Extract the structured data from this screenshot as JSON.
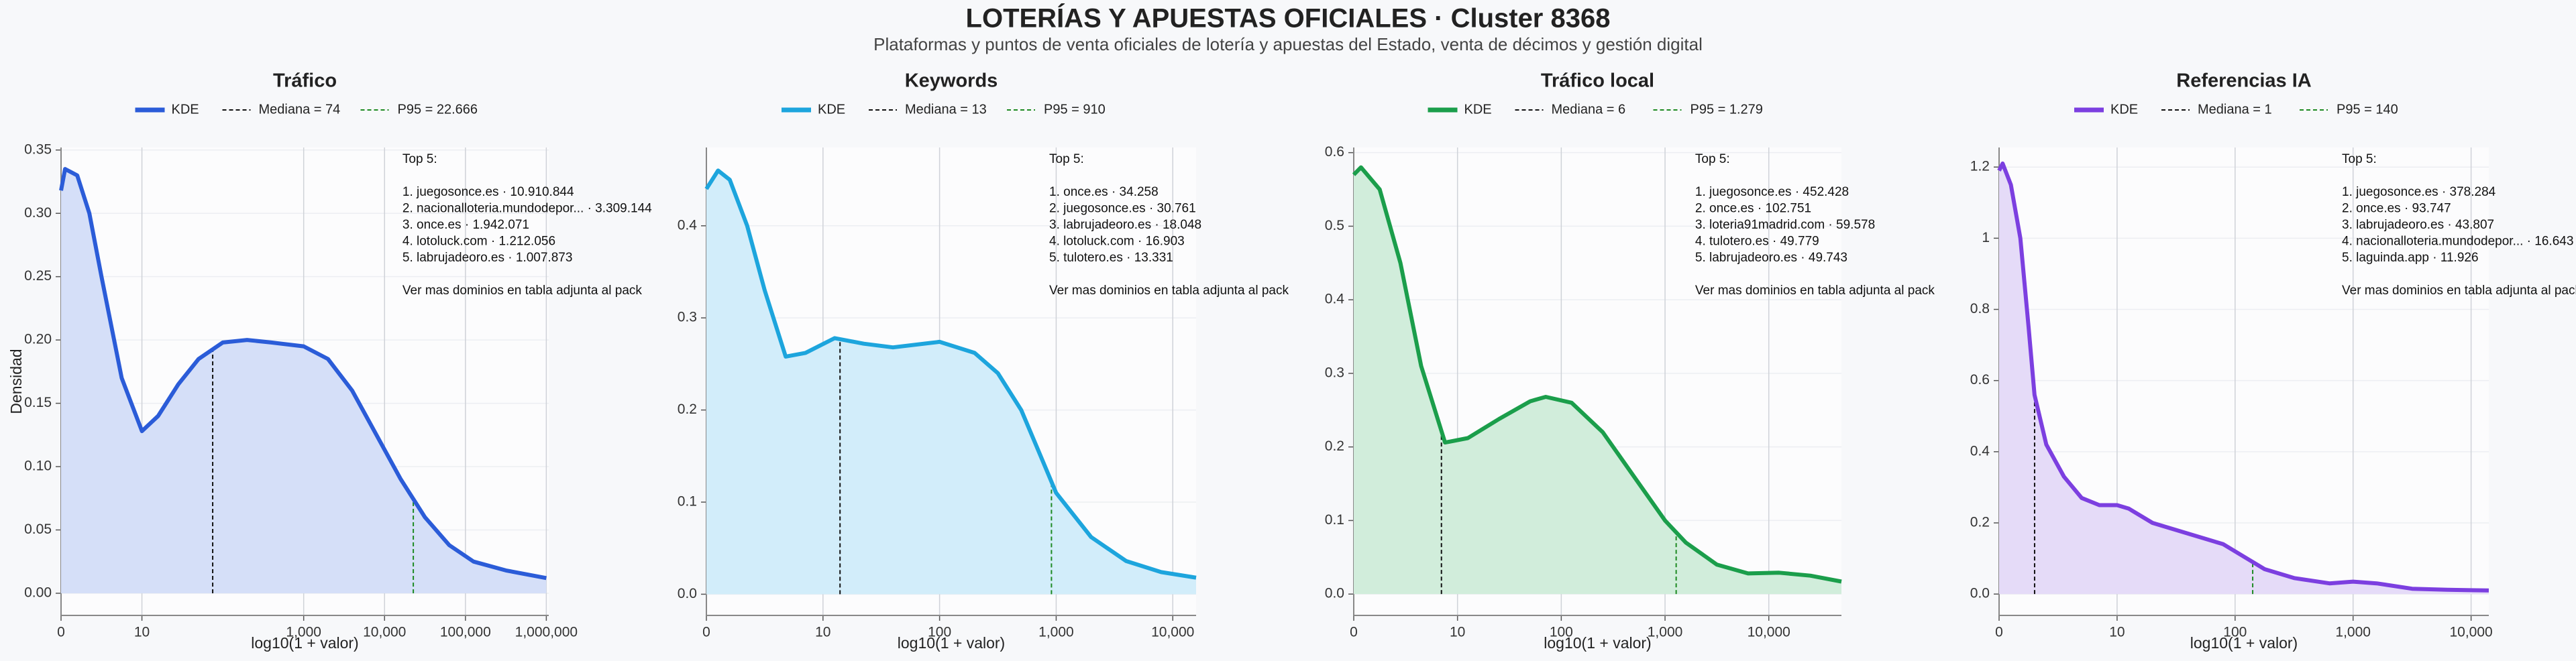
{
  "title": "LOTERÍAS Y APUESTAS OFICIALES · Cluster 8368",
  "subtitle": "Plataformas y puntos de venta oficiales de lotería y apuestas del Estado, venta de décimos y gestión digital",
  "chart_data": [
    {
      "type": "line",
      "title": "Tráfico",
      "x_label": "log10(1 + valor)",
      "y_label": "Densidad",
      "x": [
        0,
        0.05,
        0.2,
        0.35,
        0.5,
        0.75,
        1.0,
        1.2,
        1.45,
        1.7,
        2.0,
        2.3,
        2.6,
        3.0,
        3.3,
        3.6,
        3.9,
        4.2,
        4.5,
        4.8,
        5.1,
        5.5,
        6.0
      ],
      "series": [
        {
          "name": "KDE",
          "color": "#2b5cd8",
          "fill": "#d5dff8",
          "values": [
            0.318,
            0.335,
            0.33,
            0.3,
            0.25,
            0.17,
            0.128,
            0.14,
            0.165,
            0.185,
            0.198,
            0.2,
            0.198,
            0.195,
            0.185,
            0.16,
            0.125,
            0.09,
            0.06,
            0.038,
            0.025,
            0.018,
            0.012
          ]
        }
      ],
      "median": 74,
      "median_label": "Mediana = 74",
      "p95": 22666,
      "p95_label": "P95 = 22.666",
      "xlim": [
        0,
        6.03
      ],
      "ylim": [
        -0.0175,
        0.352
      ],
      "xticks": [
        0,
        {
          "value": 1,
          "label": "10"
        },
        {
          "value": 3,
          "label": "1,000"
        },
        {
          "value": 4,
          "label": "10,000"
        },
        {
          "value": 5,
          "label": "100,000"
        },
        {
          "value": 6,
          "label": "1,000,000"
        }
      ],
      "yticks": [
        {
          "value": 0,
          "label": "0.00"
        },
        0.05,
        {
          "value": 0.1,
          "label": "0.10"
        },
        0.15,
        {
          "value": 0.2,
          "label": "0.20"
        },
        0.25,
        {
          "value": 0.3,
          "label": "0.30"
        },
        0.35
      ],
      "grid": true,
      "annotation_title": "Top 5:",
      "annotation_lines": [
        "1. juegosonce.es · 10.910.844",
        "2. nacionalloteria.mundodepor... · 3.309.144",
        "3. once.es · 1.942.071",
        "4. lotoluck.com · 1.212.056",
        "5. labrujadeoro.es · 1.007.873"
      ],
      "annotation_note": "Ver mas dominios en tabla adjunta al pack"
    },
    {
      "type": "line",
      "title": "Keywords",
      "x_label": "log10(1 + valor)",
      "x": [
        0,
        0.1,
        0.2,
        0.35,
        0.5,
        0.68,
        0.85,
        1.1,
        1.35,
        1.6,
        2.0,
        2.3,
        2.5,
        2.7,
        2.85,
        3.0,
        3.3,
        3.6,
        3.9,
        4.2
      ],
      "series": [
        {
          "name": "KDE",
          "color": "#1da5dd",
          "fill": "#d2edfa",
          "values": [
            0.44,
            0.46,
            0.45,
            0.4,
            0.33,
            0.258,
            0.262,
            0.278,
            0.272,
            0.268,
            0.274,
            0.262,
            0.24,
            0.2,
            0.155,
            0.11,
            0.062,
            0.036,
            0.024,
            0.018
          ]
        }
      ],
      "median": 13,
      "median_label": "Mediana = 13",
      "p95": 910,
      "p95_label": "P95 = 910",
      "xlim": [
        0,
        4.2
      ],
      "ylim": [
        -0.023,
        0.485
      ],
      "xticks": [
        0,
        {
          "value": 1,
          "label": "10"
        },
        {
          "value": 2,
          "label": "100"
        },
        {
          "value": 3,
          "label": "1,000"
        },
        {
          "value": 4,
          "label": "10,000"
        }
      ],
      "yticks": [
        {
          "value": 0,
          "label": "0.0"
        },
        0.1,
        0.2,
        0.3,
        0.4
      ],
      "grid": true,
      "annotation_title": "Top 5:",
      "annotation_lines": [
        "1. once.es · 34.258",
        "2. juegosonce.es · 30.761",
        "3. labrujadeoro.es · 18.048",
        "4. lotoluck.com · 16.903",
        "5. tulotero.es · 13.331"
      ],
      "annotation_note": "Ver mas dominios en tabla adjunta al pack"
    },
    {
      "type": "line",
      "title": "Tráfico local",
      "x_label": "log10(1 + valor)",
      "x": [
        0,
        0.07,
        0.25,
        0.45,
        0.65,
        0.88,
        1.1,
        1.4,
        1.7,
        1.85,
        2.1,
        2.4,
        2.7,
        3.0,
        3.2,
        3.5,
        3.8,
        4.1,
        4.4,
        4.7
      ],
      "series": [
        {
          "name": "KDE",
          "color": "#1b9e4b",
          "fill": "#d1eddb",
          "values": [
            0.57,
            0.58,
            0.55,
            0.45,
            0.31,
            0.206,
            0.212,
            0.238,
            0.262,
            0.268,
            0.26,
            0.22,
            0.16,
            0.1,
            0.07,
            0.04,
            0.028,
            0.029,
            0.025,
            0.017
          ]
        }
      ],
      "median": 6,
      "median_label": "Mediana = 6",
      "p95": 1279,
      "p95_label": "P95 = 1.279",
      "xlim": [
        0,
        4.7
      ],
      "ylim": [
        -0.029,
        0.607
      ],
      "xticks": [
        0,
        {
          "value": 1,
          "label": "10"
        },
        {
          "value": 2,
          "label": "100"
        },
        {
          "value": 3,
          "label": "1,000"
        },
        {
          "value": 4,
          "label": "10,000"
        }
      ],
      "yticks": [
        {
          "value": 0,
          "label": "0.0"
        },
        0.1,
        0.2,
        0.3,
        0.4,
        0.5,
        0.6
      ],
      "grid": true,
      "annotation_title": "Top 5:",
      "annotation_lines": [
        "1. juegosonce.es · 452.428",
        "2. once.es · 102.751",
        "3. loteria91madrid.com · 59.578",
        "4. tulotero.es · 49.779",
        "5. labrujadeoro.es · 49.743"
      ],
      "annotation_note": "Ver mas dominios en tabla adjunta al pack"
    },
    {
      "type": "line",
      "title": "Referencias IA",
      "x_label": "log10(1 + valor)",
      "x": [
        0,
        0.03,
        0.1,
        0.18,
        0.25,
        0.3,
        0.4,
        0.55,
        0.7,
        0.85,
        1.0,
        1.1,
        1.3,
        1.6,
        1.9,
        2.1,
        2.25,
        2.5,
        2.8,
        3.0,
        3.2,
        3.5,
        3.8,
        4.15
      ],
      "series": [
        {
          "name": "KDE",
          "color": "#7c3fe0",
          "fill": "#e5dbf8",
          "values": [
            1.19,
            1.21,
            1.15,
            1.0,
            0.75,
            0.56,
            0.42,
            0.33,
            0.27,
            0.25,
            0.25,
            0.24,
            0.2,
            0.17,
            0.14,
            0.1,
            0.07,
            0.045,
            0.03,
            0.035,
            0.03,
            0.015,
            0.012,
            0.01
          ]
        }
      ],
      "median": 1,
      "median_label": "Mediana = 1",
      "p95": 140,
      "p95_label": "P95 = 140",
      "xlim": [
        0,
        4.15
      ],
      "ylim": [
        -0.06,
        1.255
      ],
      "xticks": [
        0,
        {
          "value": 1,
          "label": "10"
        },
        {
          "value": 2,
          "label": "100"
        },
        {
          "value": 3,
          "label": "1,000"
        },
        {
          "value": 4,
          "label": "10,000"
        }
      ],
      "yticks": [
        {
          "value": 0,
          "label": "0.0"
        },
        0.2,
        0.4,
        0.6,
        0.8,
        1.0,
        1.2
      ],
      "grid": true,
      "annotation_title": "Top 5:",
      "annotation_lines": [
        "1. juegosonce.es · 378.284",
        "2. once.es · 93.747",
        "3. labrujadeoro.es · 43.807",
        "4. nacionalloteria.mundodepor... · 16.643",
        "5. laguinda.app · 11.926"
      ],
      "annotation_note": "Ver mas dominios en tabla adjunta al pack"
    }
  ]
}
